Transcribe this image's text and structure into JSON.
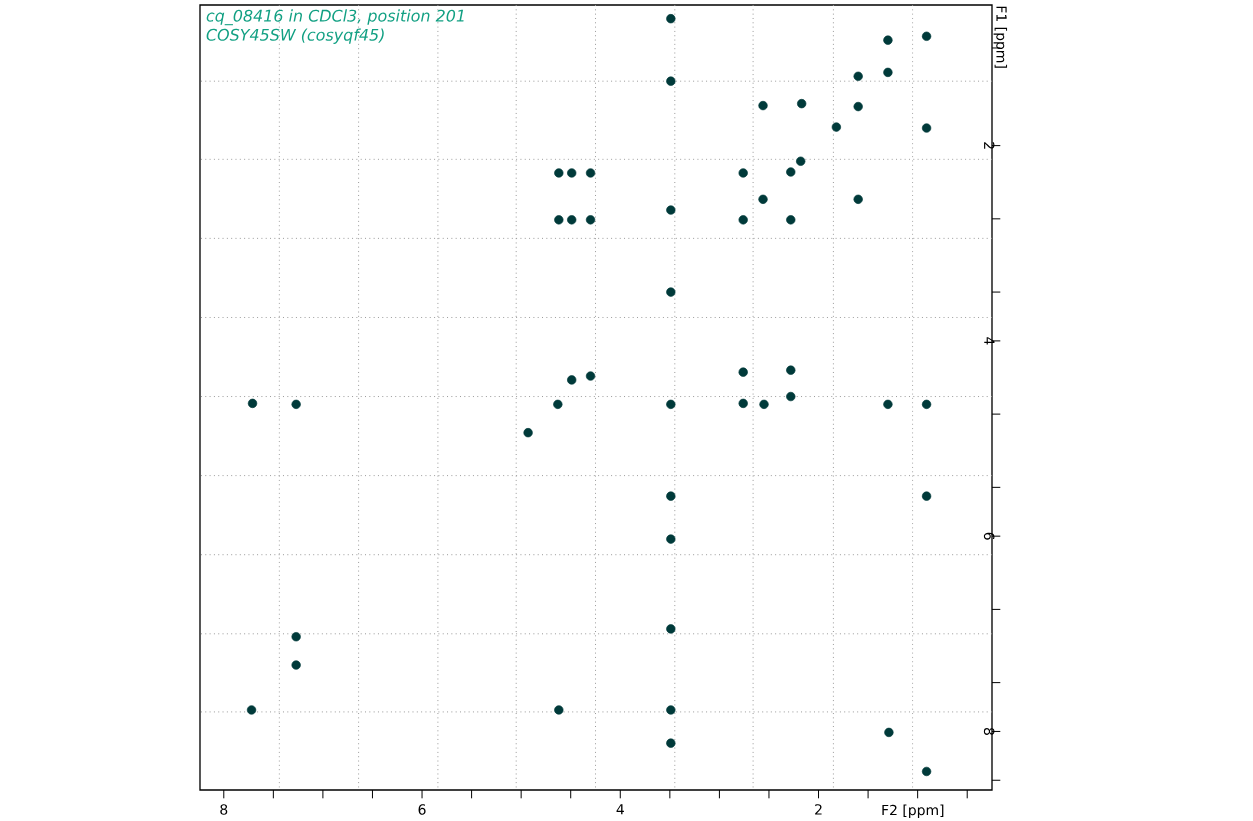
{
  "chart_data": {
    "type": "scatter",
    "title": "cq_08416 in CDCl3, position 201",
    "subtitle": "COSY45SW (cosyqf45)",
    "xlabel": "F2 [ppm]",
    "ylabel": "F1 [ppm]",
    "marker": "circle",
    "color": "#003a3a",
    "x": [
      3.49,
      3.49,
      2.56,
      2.17,
      1.82,
      1.6,
      1.6,
      1.3,
      1.3,
      0.91,
      0.91,
      4.62,
      4.49,
      4.3,
      2.76,
      2.28,
      2.18,
      2.56,
      1.6,
      4.62,
      4.49,
      4.3,
      2.76,
      2.28,
      3.49,
      3.49,
      4.63,
      4.49,
      4.3,
      2.76,
      2.76,
      2.55,
      2.28,
      2.28,
      3.49,
      1.3,
      0.91,
      4.93,
      3.49,
      0.91,
      3.49,
      7.71,
      7.27,
      7.27,
      7.27,
      7.72,
      4.62,
      3.49,
      3.49,
      3.49,
      1.29,
      0.91
    ],
    "values": [
      0.7,
      1.34,
      1.59,
      1.57,
      1.81,
      1.29,
      1.6,
      0.92,
      1.25,
      0.88,
      1.82,
      2.28,
      2.28,
      2.28,
      2.28,
      2.27,
      2.16,
      2.55,
      2.55,
      2.76,
      2.76,
      2.76,
      2.76,
      2.76,
      2.66,
      3.5,
      4.65,
      4.4,
      4.36,
      4.32,
      4.64,
      4.65,
      4.3,
      4.57,
      4.65,
      4.65,
      4.65,
      4.94,
      5.59,
      5.59,
      6.03,
      4.64,
      4.65,
      7.03,
      7.32,
      7.78,
      7.78,
      7.78,
      6.95,
      8.12,
      8.01,
      8.41
    ],
    "xlim": [
      8.24,
      0.25
    ],
    "ylim": [
      8.6,
      0.56
    ],
    "xticks": [
      8,
      {
        "value": 7.5,
        "label": null
      },
      {
        "value": 7,
        "label": null
      },
      {
        "value": 6.5,
        "label": null
      },
      6,
      {
        "value": 5.5,
        "label": null
      },
      {
        "value": 5,
        "label": null
      },
      {
        "value": 4.5,
        "label": null
      },
      4,
      {
        "value": 3.5,
        "label": null
      },
      {
        "value": 3,
        "label": null
      },
      {
        "value": 2.5,
        "label": null
      },
      2,
      {
        "value": 1.5,
        "label": null
      },
      {
        "value": 1,
        "label": null
      },
      {
        "value": 0.5,
        "label": null
      }
    ],
    "yticks": [
      {
        "value": 1,
        "label": null
      },
      2,
      {
        "value": 2.75,
        "label": null
      },
      {
        "value": 3.5,
        "label": null
      },
      4,
      {
        "value": 4.75,
        "label": null
      },
      {
        "value": 5.5,
        "label": null
      },
      6,
      {
        "value": 6.75,
        "label": null
      },
      {
        "value": 7.5,
        "label": null
      },
      8,
      {
        "value": 8.5,
        "label": null
      }
    ],
    "ref_lines": [
      {
        "axis": "x",
        "value": 7.44,
        "color": "#999999",
        "line_style": "dotted"
      },
      {
        "axis": "x",
        "value": 6.64,
        "color": "#999999",
        "line_style": "dotted"
      },
      {
        "axis": "x",
        "value": 5.84,
        "color": "#999999",
        "line_style": "dotted"
      },
      {
        "axis": "x",
        "value": 5.05,
        "color": "#999999",
        "line_style": "dotted"
      },
      {
        "axis": "x",
        "value": 4.25,
        "color": "#999999",
        "line_style": "dotted"
      },
      {
        "axis": "x",
        "value": 3.45,
        "color": "#999999",
        "line_style": "dotted"
      },
      {
        "axis": "x",
        "value": 2.66,
        "color": "#999999",
        "line_style": "dotted"
      },
      {
        "axis": "x",
        "value": 1.85,
        "color": "#999999",
        "line_style": "dotted"
      },
      {
        "axis": "x",
        "value": 1.05,
        "color": "#999999",
        "line_style": "dotted"
      },
      {
        "axis": "y",
        "value": 1.34,
        "color": "#999999",
        "line_style": "dotted"
      },
      {
        "axis": "y",
        "value": 2.14,
        "color": "#999999",
        "line_style": "dotted"
      },
      {
        "axis": "y",
        "value": 2.95,
        "color": "#999999",
        "line_style": "dotted"
      },
      {
        "axis": "y",
        "value": 3.76,
        "color": "#999999",
        "line_style": "dotted"
      },
      {
        "axis": "y",
        "value": 4.57,
        "color": "#999999",
        "line_style": "dotted"
      },
      {
        "axis": "y",
        "value": 5.38,
        "color": "#999999",
        "line_style": "dotted"
      },
      {
        "axis": "y",
        "value": 6.19,
        "color": "#999999",
        "line_style": "dotted"
      },
      {
        "axis": "y",
        "value": 7.0,
        "color": "#999999",
        "line_style": "dotted"
      },
      {
        "axis": "y",
        "value": 7.8,
        "color": "#999999",
        "line_style": "dotted"
      }
    ]
  }
}
